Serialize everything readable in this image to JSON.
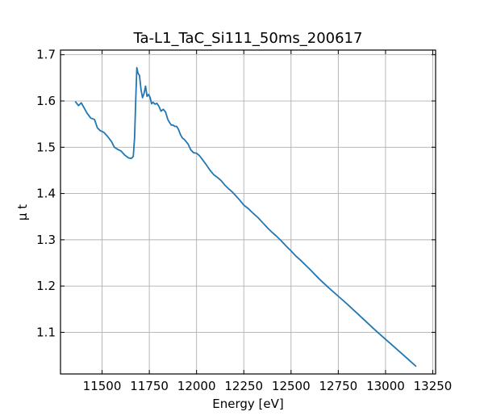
{
  "chart_data": {
    "type": "line",
    "title": "Ta-L1_TaC_Si111_50ms_200617",
    "xlabel": "Energy [eV]",
    "ylabel": "μ t",
    "xlim": [
      11280,
      13265
    ],
    "ylim": [
      1.01,
      1.71
    ],
    "xticks": [
      11500,
      11750,
      12000,
      12250,
      12500,
      12750,
      13000,
      13250
    ],
    "yticks": [
      1.1,
      1.2,
      1.3,
      1.4,
      1.5,
      1.6,
      1.7
    ],
    "grid": true,
    "line_color": "#1f77b4",
    "series": [
      {
        "x": [
          11360,
          11375,
          11390,
          11405,
          11420,
          11440,
          11460,
          11475,
          11490,
          11510,
          11530,
          11550,
          11565,
          11580,
          11600,
          11620,
          11640,
          11655,
          11665,
          11672,
          11678,
          11684,
          11690,
          11698,
          11706,
          11714,
          11722,
          11730,
          11738,
          11746,
          11754,
          11762,
          11770,
          11780,
          11790,
          11800,
          11812,
          11824,
          11836,
          11848,
          11858,
          11866,
          11875,
          11885,
          11895,
          11905,
          11915,
          11925,
          11935,
          11945,
          11955,
          11970,
          11985,
          12000,
          12015,
          12030,
          12050,
          12070,
          12090,
          12110,
          12130,
          12150,
          12170,
          12190,
          12210,
          12230,
          12250,
          12275,
          12300,
          12325,
          12350,
          12375,
          12400,
          12425,
          12450,
          12475,
          12500,
          12525,
          12550,
          12600,
          12650,
          12700,
          12750,
          12800,
          12850,
          12900,
          12950,
          13000,
          13050,
          13100,
          13160
        ],
        "y": [
          1.598,
          1.59,
          1.596,
          1.585,
          1.574,
          1.563,
          1.56,
          1.542,
          1.536,
          1.532,
          1.523,
          1.512,
          1.5,
          1.496,
          1.492,
          1.483,
          1.477,
          1.476,
          1.48,
          1.52,
          1.6,
          1.672,
          1.66,
          1.655,
          1.625,
          1.607,
          1.616,
          1.632,
          1.61,
          1.614,
          1.608,
          1.594,
          1.597,
          1.593,
          1.595,
          1.589,
          1.578,
          1.582,
          1.576,
          1.56,
          1.553,
          1.548,
          1.548,
          1.545,
          1.545,
          1.538,
          1.527,
          1.52,
          1.517,
          1.512,
          1.507,
          1.494,
          1.488,
          1.487,
          1.482,
          1.474,
          1.463,
          1.451,
          1.441,
          1.435,
          1.428,
          1.418,
          1.41,
          1.403,
          1.394,
          1.385,
          1.375,
          1.367,
          1.357,
          1.348,
          1.337,
          1.326,
          1.316,
          1.307,
          1.297,
          1.286,
          1.276,
          1.265,
          1.256,
          1.236,
          1.215,
          1.196,
          1.178,
          1.16,
          1.141,
          1.122,
          1.103,
          1.085,
          1.067,
          1.049,
          1.027
        ]
      }
    ]
  }
}
